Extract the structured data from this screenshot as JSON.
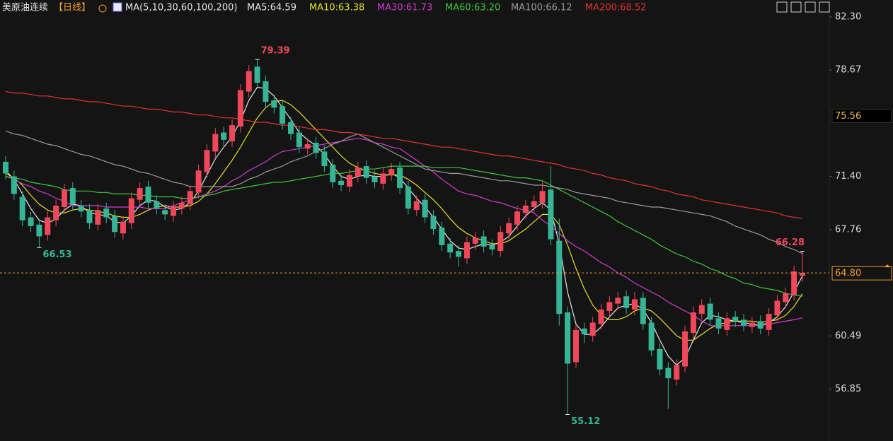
{
  "chart_data": {
    "type": "candlestick",
    "title": "美原油连续",
    "period": "【日线】",
    "indicator": "MA(5,10,30,60,100,200)",
    "up_color": "#f0485a",
    "down_color": "#35b596",
    "open": [
      72.4,
      71.4,
      70.0,
      68.6,
      68.1,
      67.4,
      68.4,
      69.3,
      70.6,
      69.4,
      69.1,
      68.1,
      69.2,
      68.7,
      67.5,
      68.2,
      69.8,
      70.7,
      69.7,
      69.1,
      68.7,
      69.2,
      69.5,
      70.3,
      71.7,
      73.1,
      74.4,
      73.8,
      74.8,
      77.2,
      78.9,
      77.9,
      76.6,
      76.2,
      75.1,
      74.4,
      73.3,
      73.7,
      73.1,
      72.2,
      71.1,
      70.7,
      71.4,
      72.1,
      71.4,
      70.9,
      71.5,
      72.0,
      70.7,
      69.1,
      69.8,
      68.7,
      67.9,
      66.8,
      66.3,
      65.8,
      66.8,
      67.3,
      66.7,
      66.3,
      67.5,
      68.1,
      68.9,
      69.3,
      69.6,
      70.5,
      67.0,
      62.1,
      58.7,
      61.0,
      60.5,
      61.3,
      62.2,
      62.7,
      63.2,
      62.3,
      63.1,
      61.4,
      59.6,
      58.3,
      57.5,
      58.4,
      60.7,
      62.0,
      62.7,
      61.7,
      60.9,
      61.8,
      61.6,
      61.1,
      61.5,
      60.9,
      61.9,
      62.8,
      63.3,
      64.6
    ],
    "high": [
      72.8,
      71.8,
      70.4,
      69.0,
      68.5,
      69.0,
      69.8,
      70.9,
      71.0,
      69.8,
      69.5,
      69.5,
      69.6,
      69.1,
      68.7,
      70.3,
      71.0,
      71.1,
      70.1,
      69.5,
      69.7,
      70.0,
      70.8,
      72.2,
      73.6,
      74.7,
      74.8,
      75.3,
      77.7,
      79.0,
      79.39,
      78.3,
      77.0,
      76.6,
      75.5,
      74.8,
      74.0,
      74.1,
      73.5,
      72.6,
      71.5,
      71.9,
      72.4,
      72.5,
      71.8,
      72.0,
      72.3,
      72.4,
      71.1,
      70.1,
      70.2,
      69.1,
      68.3,
      67.2,
      66.7,
      67.3,
      67.6,
      67.7,
      67.1,
      68.0,
      68.6,
      69.4,
      69.8,
      70.1,
      71.0,
      72.1,
      68.5,
      62.5,
      61.3,
      61.4,
      61.8,
      62.7,
      63.2,
      63.5,
      63.6,
      63.5,
      63.5,
      61.8,
      60.0,
      58.7,
      58.9,
      61.2,
      62.5,
      63.0,
      63.1,
      62.1,
      62.1,
      62.2,
      62.0,
      61.8,
      61.9,
      62.4,
      63.3,
      63.8,
      65.3,
      66.28
    ],
    "low": [
      71.2,
      69.8,
      68.0,
      67.6,
      66.53,
      67.0,
      68.0,
      68.9,
      69.1,
      68.6,
      67.8,
      67.7,
      68.2,
      67.2,
      67.1,
      67.8,
      69.4,
      69.2,
      68.8,
      68.4,
      68.3,
      68.8,
      69.1,
      69.9,
      71.3,
      72.7,
      73.5,
      73.4,
      74.4,
      76.8,
      77.4,
      76.1,
      75.7,
      74.6,
      73.9,
      73.0,
      72.9,
      72.6,
      71.7,
      70.6,
      70.4,
      70.3,
      71.0,
      70.9,
      70.6,
      70.5,
      71.1,
      70.2,
      68.8,
      68.7,
      68.2,
      67.4,
      66.3,
      65.8,
      65.2,
      65.4,
      66.4,
      66.2,
      66.0,
      65.9,
      67.1,
      67.7,
      68.5,
      68.9,
      69.2,
      66.7,
      61.2,
      55.12,
      58.3,
      60.0,
      60.1,
      60.9,
      61.8,
      62.3,
      62.0,
      61.9,
      60.9,
      59.1,
      57.8,
      55.5,
      57.1,
      58.0,
      60.3,
      61.6,
      61.2,
      60.6,
      60.5,
      61.1,
      60.8,
      60.7,
      60.6,
      60.5,
      61.5,
      62.4,
      62.9,
      64.2
    ],
    "close": [
      71.6,
      70.2,
      68.4,
      68.0,
      67.3,
      68.6,
      69.4,
      70.5,
      69.5,
      69.0,
      68.2,
      69.1,
      68.6,
      67.6,
      68.3,
      69.9,
      70.6,
      69.6,
      69.2,
      68.8,
      69.3,
      69.6,
      70.4,
      71.8,
      73.2,
      74.3,
      73.9,
      74.9,
      77.3,
      78.6,
      77.8,
      76.5,
      76.1,
      75.0,
      74.3,
      73.4,
      73.6,
      73.0,
      72.1,
      71.0,
      70.8,
      71.5,
      72.0,
      71.3,
      71.0,
      71.6,
      71.9,
      70.6,
      69.2,
      69.7,
      68.6,
      67.8,
      66.7,
      66.2,
      65.9,
      66.9,
      67.2,
      66.6,
      66.4,
      67.6,
      68.2,
      69.0,
      69.4,
      69.7,
      70.4,
      67.1,
      62.0,
      58.6,
      60.9,
      60.6,
      61.4,
      62.3,
      62.8,
      63.1,
      62.4,
      63.0,
      61.3,
      59.5,
      58.2,
      57.6,
      58.5,
      60.8,
      62.1,
      62.6,
      61.6,
      61.0,
      61.7,
      61.5,
      61.2,
      61.4,
      61.0,
      62.0,
      62.9,
      63.4,
      64.9,
      64.8
    ],
    "series": [
      {
        "name": "MA5:64.59",
        "color": "#e6e6e6",
        "values": [
          71.8,
          71.2,
          70.2,
          69.2,
          68.4,
          68.2,
          68.5,
          69.1,
          69.5,
          69.4,
          68.9,
          68.8,
          68.7,
          68.3,
          68.2,
          68.7,
          69.4,
          69.8,
          69.7,
          69.3,
          69.1,
          69.2,
          69.6,
          70.4,
          71.5,
          72.6,
          73.4,
          74.1,
          75.2,
          76.6,
          77.5,
          77.4,
          76.9,
          76.1,
          75.3,
          74.4,
          73.9,
          73.5,
          72.9,
          72.1,
          71.4,
          71.2,
          71.4,
          71.5,
          71.4,
          71.4,
          71.6,
          71.3,
          70.6,
          69.9,
          69.3,
          68.6,
          67.8,
          67.0,
          66.5,
          66.4,
          66.6,
          66.8,
          66.7,
          66.9,
          67.3,
          68.0,
          68.7,
          69.2,
          69.6,
          69.1,
          66.8,
          63.5,
          61.3,
          60.6,
          60.6,
          61.1,
          61.8,
          62.4,
          62.6,
          62.7,
          62.3,
          61.4,
          60.2,
          59.1,
          58.5,
          59.0,
          60.2,
          61.4,
          61.9,
          61.8,
          61.6,
          61.5,
          61.4,
          61.3,
          61.2,
          61.4,
          61.8,
          62.5,
          63.5,
          64.59
        ]
      },
      {
        "name": "MA10:63.38",
        "color": "#e8e020",
        "values": [
          71.6,
          71.3,
          70.8,
          70.1,
          69.5,
          69.1,
          68.9,
          68.9,
          69.1,
          69.2,
          69.1,
          69.0,
          68.9,
          68.7,
          68.6,
          68.6,
          68.8,
          69.1,
          69.3,
          69.4,
          69.3,
          69.3,
          69.4,
          69.7,
          70.2,
          70.9,
          71.7,
          72.5,
          73.4,
          74.4,
          75.4,
          76.1,
          76.5,
          76.6,
          76.3,
          75.8,
          75.2,
          74.6,
          74.0,
          73.4,
          72.8,
          72.3,
          72.0,
          71.8,
          71.6,
          71.5,
          71.5,
          71.5,
          71.2,
          70.8,
          70.3,
          69.8,
          69.2,
          68.5,
          67.9,
          67.5,
          67.2,
          67.0,
          66.8,
          66.8,
          67.0,
          67.4,
          67.8,
          68.3,
          68.8,
          68.8,
          68.1,
          66.7,
          65.1,
          63.7,
          62.6,
          61.9,
          61.6,
          61.6,
          61.8,
          62.2,
          62.4,
          62.2,
          61.7,
          61.1,
          60.5,
          60.2,
          60.2,
          60.6,
          61.0,
          61.3,
          61.4,
          61.5,
          61.5,
          61.5,
          61.4,
          61.5,
          61.6,
          61.9,
          62.5,
          63.38
        ]
      },
      {
        "name": "MA30:61.73",
        "color": "#d43ad4",
        "values": [
          71.4,
          71.2,
          70.9,
          70.7,
          70.4,
          70.2,
          69.9,
          69.7,
          69.4,
          69.4,
          69.4,
          69.4,
          69.3,
          69.3,
          69.3,
          69.3,
          69.3,
          69.2,
          69.2,
          69.2,
          69.4,
          69.6,
          69.8,
          70.0,
          70.2,
          70.4,
          70.7,
          71.1,
          71.4,
          71.8,
          72.1,
          72.4,
          72.8,
          73.1,
          73.2,
          73.3,
          73.4,
          73.5,
          73.6,
          73.7,
          73.8,
          73.9,
          74.0,
          73.9,
          73.7,
          73.6,
          73.4,
          73.3,
          72.9,
          72.5,
          72.1,
          71.7,
          71.2,
          70.8,
          70.4,
          70.2,
          70.1,
          69.9,
          69.7,
          69.6,
          69.4,
          69.2,
          69.1,
          68.9,
          68.4,
          68.0,
          67.5,
          67.0,
          66.6,
          66.3,
          65.9,
          65.5,
          65.2,
          64.8,
          64.5,
          64.1,
          63.8,
          63.5,
          63.2,
          62.8,
          62.5,
          62.2,
          61.9,
          61.5,
          61.2,
          61.2,
          61.2,
          61.2,
          61.2,
          61.2,
          61.2,
          61.3,
          61.4,
          61.5,
          61.6,
          61.73
        ]
      },
      {
        "name": "MA60:63.20",
        "color": "#3cc83c",
        "values": [
          71.4,
          71.3,
          71.2,
          71.0,
          70.9,
          70.8,
          70.7,
          70.5,
          70.4,
          70.4,
          70.4,
          70.3,
          70.3,
          70.2,
          70.2,
          70.2,
          70.1,
          70.1,
          70.0,
          70.0,
          70.0,
          69.9,
          69.9,
          70.0,
          70.1,
          70.2,
          70.4,
          70.5,
          70.6,
          70.7,
          70.8,
          70.9,
          71.0,
          71.0,
          71.1,
          71.2,
          71.3,
          71.4,
          71.5,
          71.6,
          71.6,
          71.7,
          71.8,
          71.9,
          71.9,
          72.0,
          72.1,
          72.1,
          72.1,
          72.1,
          72.1,
          72.0,
          72.0,
          72.0,
          72.0,
          71.9,
          71.8,
          71.7,
          71.6,
          71.5,
          71.4,
          71.3,
          71.3,
          71.2,
          71.1,
          70.8,
          70.5,
          70.2,
          69.9,
          69.6,
          69.3,
          69.0,
          68.7,
          68.3,
          68.0,
          67.7,
          67.4,
          67.1,
          66.7,
          66.4,
          66.1,
          65.9,
          65.6,
          65.4,
          65.1,
          64.9,
          64.6,
          64.4,
          64.1,
          64.0,
          63.8,
          63.7,
          63.6,
          63.4,
          63.3,
          63.2
        ]
      },
      {
        "name": "MA100:66.12",
        "color": "#9a9a9a",
        "values": [
          74.5,
          74.3,
          74.2,
          74.0,
          73.8,
          73.6,
          73.5,
          73.3,
          73.1,
          72.9,
          72.8,
          72.6,
          72.4,
          72.2,
          72.1,
          71.9,
          71.7,
          71.6,
          71.4,
          71.2,
          71.0,
          70.9,
          70.7,
          70.7,
          70.7,
          70.7,
          70.7,
          70.7,
          70.9,
          71.2,
          71.4,
          71.7,
          71.9,
          72.1,
          72.4,
          72.6,
          72.8,
          73.1,
          73.3,
          73.6,
          73.8,
          74.1,
          74.3,
          74.0,
          73.7,
          73.4,
          73.1,
          72.8,
          72.5,
          72.2,
          71.9,
          71.8,
          71.7,
          71.6,
          71.6,
          71.5,
          71.4,
          71.3,
          71.2,
          71.1,
          71.1,
          71.0,
          70.9,
          70.8,
          70.8,
          70.7,
          70.6,
          70.5,
          70.3,
          70.2,
          70.1,
          70.0,
          69.9,
          69.7,
          69.6,
          69.5,
          69.4,
          69.3,
          69.3,
          69.2,
          69.1,
          69.0,
          68.9,
          68.8,
          68.7,
          68.5,
          68.3,
          68.0,
          67.8,
          67.6,
          67.4,
          67.1,
          66.9,
          66.6,
          66.4,
          66.12
        ]
      },
      {
        "name": "MA200:68.52",
        "color": "#e23232",
        "values": [
          77.2,
          77.1,
          77.1,
          77.0,
          76.9,
          76.9,
          76.8,
          76.7,
          76.7,
          76.6,
          76.5,
          76.5,
          76.4,
          76.3,
          76.2,
          76.2,
          76.1,
          76.0,
          76.0,
          75.9,
          75.8,
          75.8,
          75.7,
          75.6,
          75.6,
          75.5,
          75.4,
          75.4,
          75.3,
          75.2,
          75.1,
          75.1,
          75.0,
          74.9,
          74.9,
          74.8,
          74.7,
          74.6,
          74.6,
          74.5,
          74.4,
          74.4,
          74.3,
          74.2,
          74.1,
          74.0,
          74.0,
          73.9,
          73.8,
          73.7,
          73.6,
          73.5,
          73.4,
          73.4,
          73.3,
          73.2,
          73.1,
          73.0,
          72.9,
          72.8,
          72.8,
          72.7,
          72.6,
          72.5,
          72.4,
          72.3,
          72.2,
          72.0,
          71.9,
          71.8,
          71.6,
          71.5,
          71.3,
          71.2,
          71.1,
          70.9,
          70.8,
          70.7,
          70.5,
          70.4,
          70.2,
          70.1,
          70.0,
          69.8,
          69.7,
          69.6,
          69.5,
          69.4,
          69.3,
          69.2,
          69.1,
          69.0,
          68.9,
          68.7,
          68.6,
          68.52
        ]
      }
    ],
    "ylim": [
      53.5,
      83.46
    ],
    "yticks": [
      {
        "value": 82.3,
        "label": "82.30"
      },
      {
        "value": 78.67,
        "label": "78.67"
      },
      {
        "value": 71.4,
        "label": "71.40"
      },
      {
        "value": 67.76,
        "label": "67.76"
      },
      {
        "value": 60.49,
        "label": "60.49"
      },
      {
        "value": 56.85,
        "label": "56.85"
      }
    ],
    "highlight": {
      "value": 75.56,
      "label": "75.56"
    },
    "last_price": {
      "value": 64.8,
      "label": "64.80",
      "color": "#f0a030"
    },
    "annotations": [
      {
        "value": 79.39,
        "label": "79.39",
        "color": "#f0485a"
      },
      {
        "value": 66.53,
        "label": "66.53",
        "color": "#35b596"
      },
      {
        "value": 55.12,
        "label": "55.12",
        "color": "#35b596"
      },
      {
        "value": 66.28,
        "label": "66.28",
        "color": "#f0485a"
      }
    ]
  }
}
